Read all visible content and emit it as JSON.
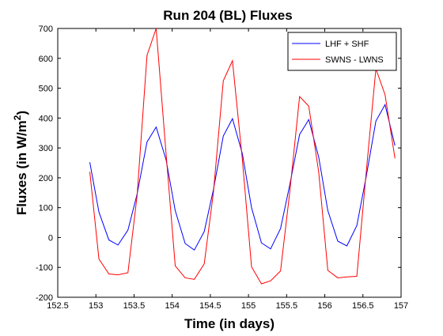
{
  "chart_data": {
    "type": "line",
    "title": "Run 204 (BL) Fluxes",
    "xlabel": "Time (in days)",
    "ylabel_main": "Fluxes (in W/m",
    "ylabel_sup": "2",
    "ylabel_close": ")",
    "xlim": [
      152.5,
      157
    ],
    "ylim": [
      -200,
      700
    ],
    "xticks": [
      152.5,
      153,
      153.5,
      154,
      154.5,
      155,
      155.5,
      156,
      156.5,
      157
    ],
    "yticks": [
      -200,
      -100,
      0,
      100,
      200,
      300,
      400,
      500,
      600,
      700
    ],
    "xtick_labels": [
      "152.5",
      "153",
      "153.5",
      "154",
      "154.5",
      "155",
      "155.5",
      "156",
      "156.5",
      "157"
    ],
    "ytick_labels": [
      "-200",
      "-100",
      "0",
      "100",
      "200",
      "300",
      "400",
      "500",
      "600",
      "700"
    ],
    "grid": false,
    "legend_position": "top-right",
    "x": [
      152.92,
      153.04,
      153.17,
      153.29,
      153.42,
      153.54,
      153.67,
      153.79,
      153.92,
      154.04,
      154.17,
      154.29,
      154.42,
      154.54,
      154.67,
      154.79,
      154.92,
      155.04,
      155.17,
      155.29,
      155.42,
      155.54,
      155.67,
      155.79,
      155.92,
      156.04,
      156.17,
      156.29,
      156.42,
      156.54,
      156.67,
      156.79,
      156.92
    ],
    "series": [
      {
        "name": "LHF + SHF",
        "color": "#0000ff",
        "values": [
          252,
          85,
          -8,
          -25,
          25,
          145,
          320,
          370,
          260,
          90,
          -20,
          -42,
          20,
          160,
          340,
          398,
          280,
          100,
          -18,
          -38,
          30,
          175,
          345,
          395,
          270,
          90,
          -12,
          -28,
          40,
          200,
          390,
          445,
          308
        ]
      },
      {
        "name": "SWNS - LWNS",
        "color": "#ff0000",
        "values": [
          220,
          -72,
          -122,
          -125,
          -118,
          140,
          610,
          700,
          280,
          -95,
          -135,
          -140,
          -88,
          150,
          525,
          592,
          260,
          -98,
          -155,
          -145,
          -112,
          150,
          472,
          440,
          220,
          -110,
          -135,
          -132,
          -130,
          210,
          565,
          478,
          265
        ]
      }
    ]
  }
}
